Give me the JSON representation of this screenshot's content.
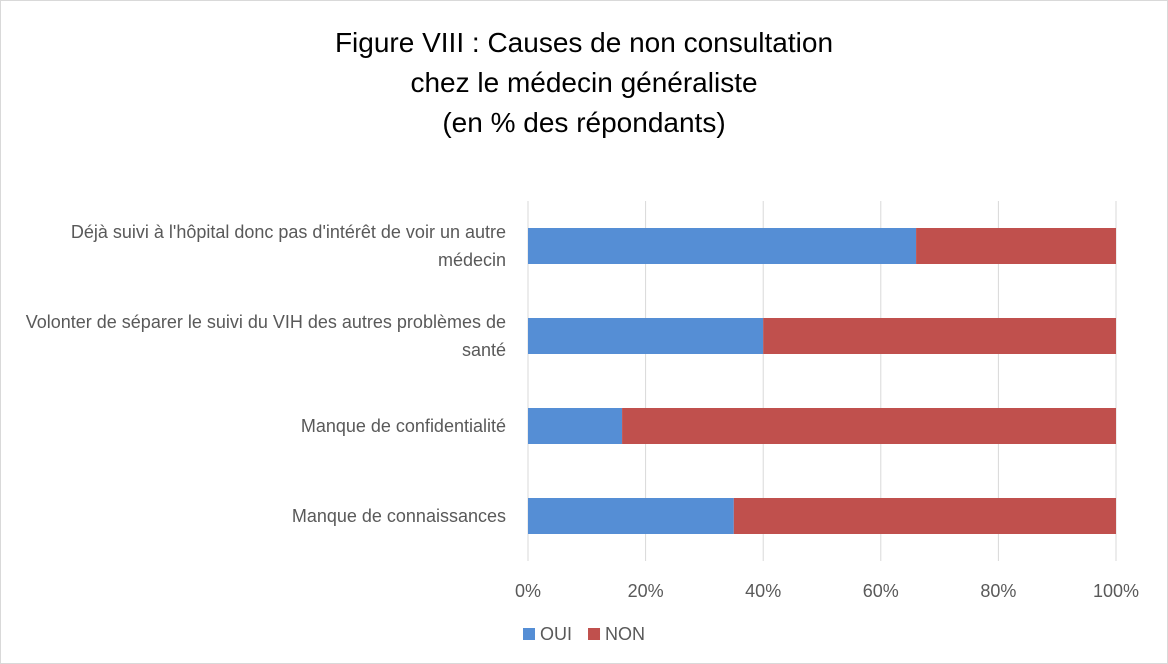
{
  "chart_data": {
    "type": "stacked_bar_horizontal",
    "title": "Figure VIII : Causes de non consultation\nchez le médecin généraliste\n(en % des répondants)",
    "categories": [
      "Déjà suivi à l'hôpital donc pas d'intérêt de voir un autre médecin",
      "Volonter de séparer le suivi du VIH des autres problèmes de santé",
      "Manque de confidentialité",
      "Manque de connaissances"
    ],
    "series": [
      {
        "name": "OUI",
        "color": "#558ed5",
        "values": [
          66,
          40,
          16,
          35
        ]
      },
      {
        "name": "NON",
        "color": "#c0504d",
        "values": [
          34,
          60,
          84,
          65
        ]
      }
    ],
    "xlim": [
      0,
      100
    ],
    "xticks": [
      {
        "value": 0,
        "label": "0%"
      },
      {
        "value": 20,
        "label": "20%"
      },
      {
        "value": 40,
        "label": "40%"
      },
      {
        "value": 60,
        "label": "60%"
      },
      {
        "value": 80,
        "label": "80%"
      },
      {
        "value": 100,
        "label": "100%"
      }
    ],
    "grid": true,
    "legend": "bottom"
  }
}
